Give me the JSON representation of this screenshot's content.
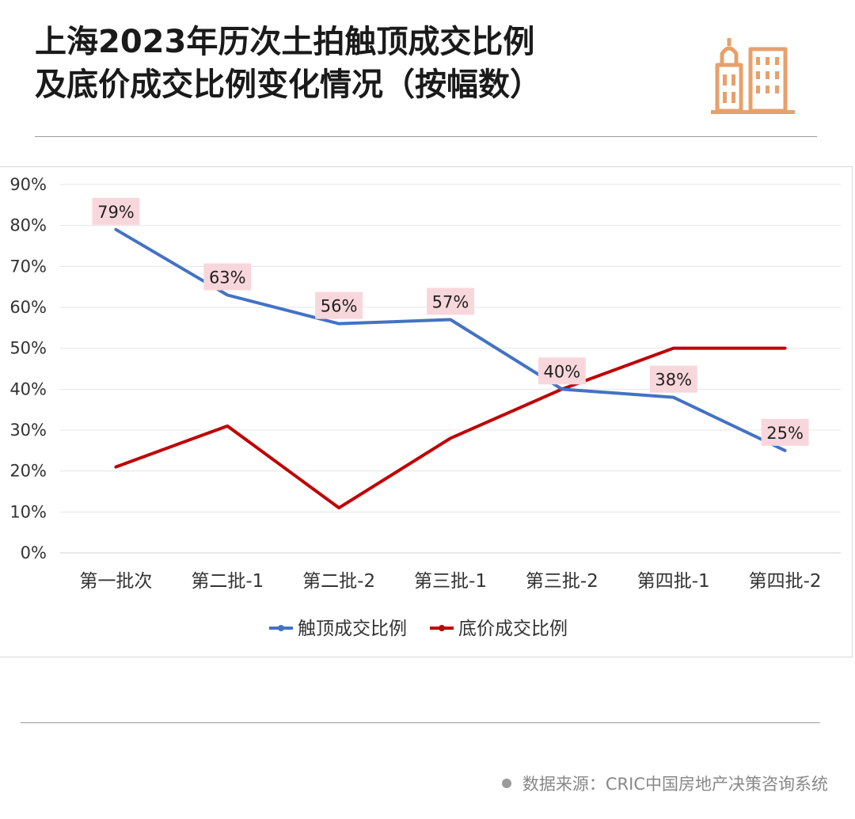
{
  "title": {
    "line1": "上海2023年历次土拍触顶成交比例",
    "line2": "及底价成交比例变化情况（按幅数）"
  },
  "logo_icon": "city-buildings-icon",
  "source_text": "数据来源：CRIC中国房地产决策咨询系统",
  "colors": {
    "series_top": "#4472c4",
    "series_floor": "#c00000",
    "label_bg": "#f8d7dc",
    "logo": "#e8a06b"
  },
  "chart_data": {
    "type": "line",
    "title": "",
    "xlabel": "",
    "ylabel": "",
    "ylim": [
      0,
      90
    ],
    "yticks": [
      "0%",
      "10%",
      "20%",
      "30%",
      "40%",
      "50%",
      "60%",
      "70%",
      "80%",
      "90%"
    ],
    "grid": true,
    "legend_position": "bottom",
    "categories": [
      "第一批次",
      "第二批-1",
      "第二批-2",
      "第三批-1",
      "第三批-2",
      "第四批-1",
      "第四批-2"
    ],
    "series": [
      {
        "name": "触顶成交比例",
        "values": [
          79,
          63,
          56,
          57,
          40,
          38,
          25
        ],
        "data_labels": [
          "79%",
          "63%",
          "56%",
          "57%",
          "40%",
          "38%",
          "25%"
        ]
      },
      {
        "name": "底价成交比例",
        "values": [
          21,
          31,
          11,
          28,
          40,
          50,
          50
        ]
      }
    ]
  }
}
